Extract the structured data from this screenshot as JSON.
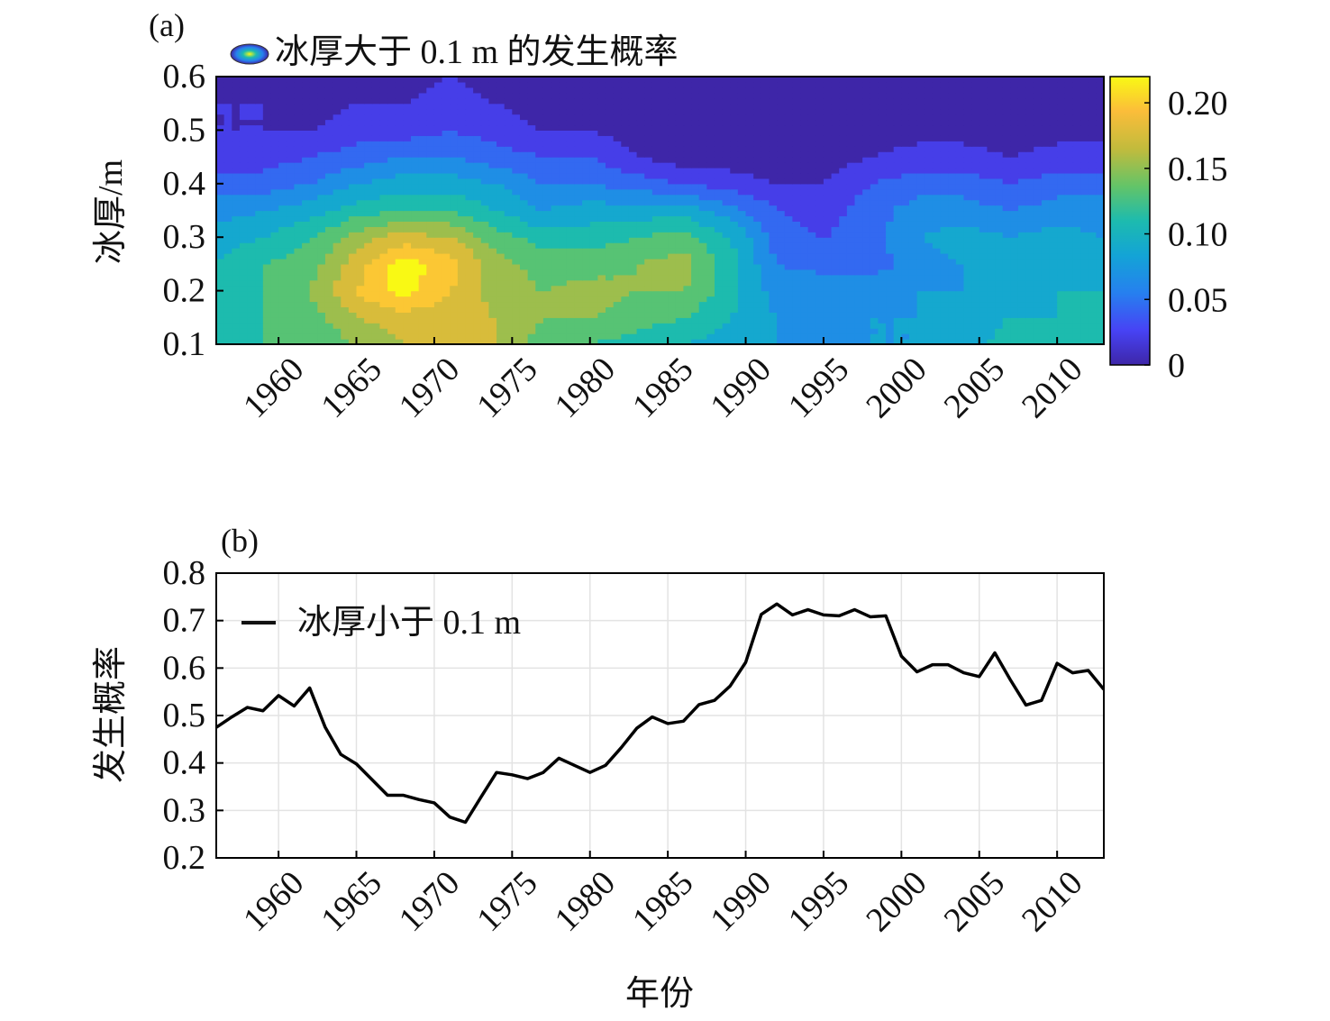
{
  "chart_data": [
    {
      "panel_label": "(a)",
      "type": "heatmap",
      "legend_label": "冰厚大于 0.1 m 的发生概率",
      "ylabel": "冰厚/m",
      "xlabel": "",
      "xlim": [
        1956,
        2013
      ],
      "ylim": [
        0.1,
        0.6
      ],
      "x_ticks": [
        "1960",
        "1965",
        "1970",
        "1975",
        "1980",
        "1985",
        "1990",
        "1995",
        "2000",
        "2005",
        "2010"
      ],
      "y_ticks": [
        "0.1",
        "0.2",
        "0.3",
        "0.4",
        "0.5",
        "0.6"
      ],
      "colorbar": {
        "range": [
          0,
          0.22
        ],
        "ticks": [
          "0",
          "0.05",
          "0.10",
          "0.15",
          "0.20"
        ]
      },
      "colormap": "parula",
      "years": [
        1956,
        1959,
        1962,
        1965,
        1968,
        1971,
        1974,
        1977,
        1980,
        1983,
        1986,
        1989,
        1992,
        1995,
        1998,
        2001,
        2004,
        2007,
        2010,
        2013
      ],
      "thickness": [
        0.1,
        0.15,
        0.2,
        0.25,
        0.3,
        0.35,
        0.4,
        0.45,
        0.5,
        0.55,
        0.6
      ],
      "probability": [
        [
          0.1,
          0.12,
          0.12,
          0.14,
          0.16,
          0.16,
          0.16,
          0.13,
          0.12,
          0.11,
          0.1,
          0.09,
          0.08,
          0.07,
          0.08,
          0.08,
          0.09,
          0.11,
          0.1,
          0.1
        ],
        [
          0.11,
          0.12,
          0.13,
          0.16,
          0.17,
          0.17,
          0.16,
          0.14,
          0.14,
          0.13,
          0.12,
          0.1,
          0.08,
          0.08,
          0.08,
          0.08,
          0.09,
          0.1,
          0.1,
          0.1
        ],
        [
          0.11,
          0.12,
          0.14,
          0.18,
          0.21,
          0.18,
          0.15,
          0.14,
          0.15,
          0.14,
          0.14,
          0.11,
          0.07,
          0.08,
          0.07,
          0.08,
          0.08,
          0.09,
          0.1,
          0.1
        ],
        [
          0.1,
          0.12,
          0.13,
          0.17,
          0.21,
          0.19,
          0.15,
          0.13,
          0.13,
          0.14,
          0.15,
          0.11,
          0.06,
          0.05,
          0.05,
          0.07,
          0.08,
          0.09,
          0.1,
          0.09
        ],
        [
          0.09,
          0.1,
          0.12,
          0.15,
          0.17,
          0.16,
          0.13,
          0.11,
          0.11,
          0.12,
          0.13,
          0.1,
          0.05,
          0.04,
          0.05,
          0.08,
          0.09,
          0.08,
          0.09,
          0.08
        ],
        [
          0.07,
          0.08,
          0.09,
          0.11,
          0.12,
          0.12,
          0.1,
          0.08,
          0.09,
          0.09,
          0.09,
          0.07,
          0.04,
          0.03,
          0.05,
          0.07,
          0.07,
          0.06,
          0.07,
          0.07
        ],
        [
          0.05,
          0.05,
          0.06,
          0.08,
          0.09,
          0.09,
          0.08,
          0.06,
          0.06,
          0.05,
          0.04,
          0.03,
          0.02,
          0.02,
          0.04,
          0.05,
          0.05,
          0.04,
          0.05,
          0.05
        ],
        [
          0.03,
          0.03,
          0.04,
          0.05,
          0.06,
          0.06,
          0.05,
          0.04,
          0.04,
          0.02,
          0.01,
          0.01,
          0.01,
          0.01,
          0.02,
          0.03,
          0.03,
          0.02,
          0.03,
          0.03
        ],
        [
          0.02,
          0.02,
          0.02,
          0.03,
          0.03,
          0.04,
          0.03,
          0.02,
          0.02,
          0.01,
          0.0,
          0.0,
          0.0,
          0.0,
          0.01,
          0.01,
          0.01,
          0.01,
          0.01,
          0.01
        ],
        [
          0.02,
          0.02,
          0.01,
          0.02,
          0.02,
          0.03,
          0.02,
          0.01,
          0.01,
          0.0,
          0.0,
          0.0,
          0.0,
          0.0,
          0.0,
          0.0,
          0.0,
          0.0,
          0.0,
          0.0
        ],
        [
          0.01,
          0.01,
          0.01,
          0.01,
          0.01,
          0.02,
          0.01,
          0.0,
          0.0,
          0.0,
          0.0,
          0.0,
          0.0,
          0.0,
          0.0,
          0.0,
          0.0,
          0.0,
          0.0,
          0.0
        ]
      ]
    },
    {
      "panel_label": "(b)",
      "type": "line",
      "legend_label": "冰厚小于 0.1 m",
      "xlabel": "年份",
      "ylabel": "发生概率",
      "xlim": [
        1956,
        2013
      ],
      "ylim": [
        0.2,
        0.8
      ],
      "x_ticks": [
        "1960",
        "1965",
        "1970",
        "1975",
        "1980",
        "1985",
        "1990",
        "1995",
        "2000",
        "2005",
        "2010"
      ],
      "y_ticks": [
        "0.2",
        "0.3",
        "0.4",
        "0.5",
        "0.6",
        "0.7",
        "0.8"
      ],
      "grid": true,
      "series": [
        {
          "name": "冰厚小于 0.1 m",
          "color": "#000000",
          "x": [
            1956,
            1957,
            1958,
            1959,
            1960,
            1961,
            1962,
            1963,
            1964,
            1965,
            1966,
            1967,
            1968,
            1969,
            1970,
            1971,
            1972,
            1973,
            1974,
            1975,
            1976,
            1977,
            1978,
            1979,
            1980,
            1981,
            1982,
            1983,
            1984,
            1985,
            1986,
            1987,
            1988,
            1989,
            1990,
            1991,
            1992,
            1993,
            1994,
            1995,
            1996,
            1997,
            1998,
            1999,
            2000,
            2001,
            2002,
            2003,
            2004,
            2005,
            2006,
            2007,
            2008,
            2009,
            2010,
            2011,
            2012,
            2013
          ],
          "y": [
            0.475,
            0.497,
            0.517,
            0.51,
            0.542,
            0.52,
            0.558,
            0.475,
            0.418,
            0.398,
            0.365,
            0.332,
            0.332,
            0.323,
            0.316,
            0.286,
            0.275,
            0.328,
            0.38,
            0.375,
            0.367,
            0.38,
            0.41,
            0.395,
            0.38,
            0.395,
            0.432,
            0.473,
            0.497,
            0.483,
            0.488,
            0.523,
            0.532,
            0.562,
            0.612,
            0.713,
            0.735,
            0.712,
            0.723,
            0.712,
            0.71,
            0.723,
            0.708,
            0.71,
            0.625,
            0.592,
            0.607,
            0.607,
            0.59,
            0.582,
            0.632,
            0.575,
            0.522,
            0.532,
            0.61,
            0.59,
            0.595,
            0.555
          ]
        }
      ]
    }
  ]
}
